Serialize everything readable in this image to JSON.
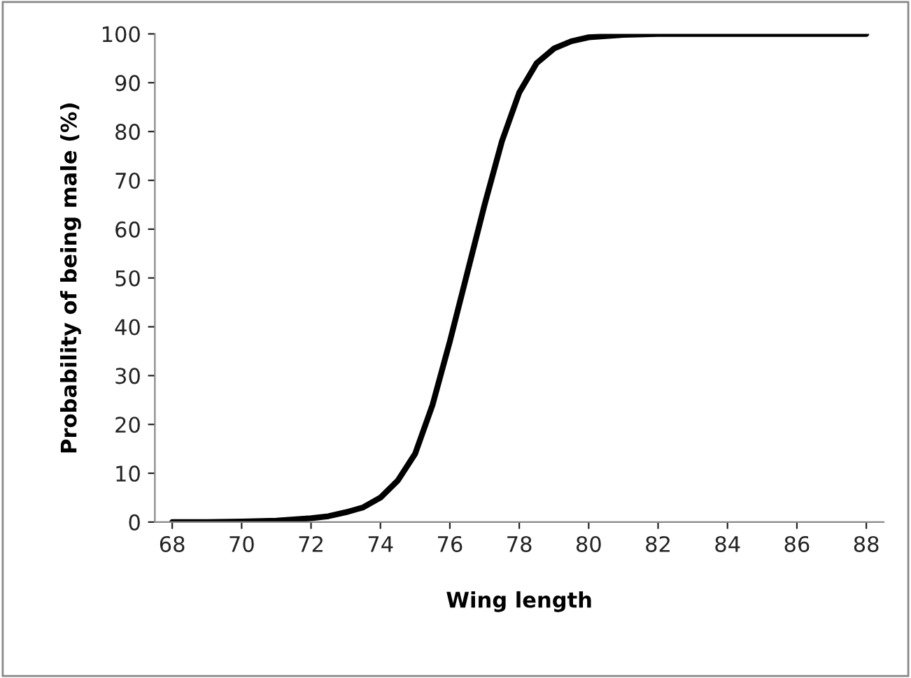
{
  "chart_data": {
    "type": "line",
    "xlabel": "Wing length",
    "ylabel": "Probability of being male (%)",
    "x": [
      68,
      69,
      70,
      71,
      72,
      72.5,
      73,
      73.5,
      74,
      74.5,
      75,
      75.5,
      76,
      76.5,
      77,
      77.5,
      78,
      78.5,
      79,
      79.5,
      80,
      81,
      82,
      84,
      86,
      88
    ],
    "series": [
      {
        "color": "#000000",
        "values": [
          0,
          0,
          0.1,
          0.3,
          0.8,
          1.2,
          2,
          3,
          5,
          8.5,
          14,
          24,
          37,
          51,
          65,
          78,
          88,
          94,
          97,
          98.5,
          99.3,
          99.8,
          100,
          100,
          100,
          100
        ]
      }
    ],
    "xlim": [
      67.5,
      88.5
    ],
    "xticks": [
      68,
      70,
      72,
      74,
      76,
      78,
      80,
      82,
      84,
      86,
      88
    ],
    "ylim": [
      0,
      100
    ],
    "yticks": [
      0,
      10,
      20,
      30,
      40,
      50,
      60,
      70,
      80,
      90,
      100
    ],
    "grid": false,
    "legend": false,
    "marker": "none",
    "line_style": "solid"
  }
}
